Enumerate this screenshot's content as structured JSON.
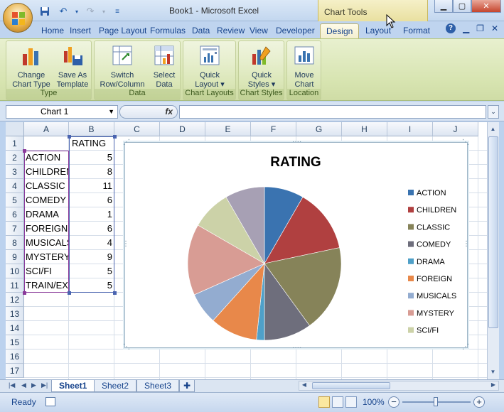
{
  "window": {
    "title": "Book1 - Microsoft Excel",
    "context_tab_group": "Chart Tools"
  },
  "qat": {
    "icons": [
      "save-icon",
      "undo-icon",
      "redo-icon",
      "customize-icon"
    ]
  },
  "ribbon": {
    "tabs": [
      "Home",
      "Insert",
      "Page Layout",
      "Formulas",
      "Data",
      "Review",
      "View",
      "Developer",
      "Design",
      "Layout",
      "Format"
    ],
    "active_tab": "Design",
    "groups": [
      {
        "label": "Type",
        "buttons": [
          {
            "label1": "Change",
            "label2": "Chart Type"
          },
          {
            "label1": "Save As",
            "label2": "Template"
          }
        ]
      },
      {
        "label": "Data",
        "buttons": [
          {
            "label1": "Switch",
            "label2": "Row/Column"
          },
          {
            "label1": "Select",
            "label2": "Data"
          }
        ]
      },
      {
        "label": "Chart Layouts",
        "buttons": [
          {
            "label1": "Quick",
            "label2": "Layout ▾"
          }
        ]
      },
      {
        "label": "Chart Styles",
        "buttons": [
          {
            "label1": "Quick",
            "label2": "Styles ▾"
          }
        ]
      },
      {
        "label": "Location",
        "buttons": [
          {
            "label1": "Move",
            "label2": "Chart"
          }
        ]
      }
    ]
  },
  "formula_bar": {
    "name_box": "Chart 1",
    "fx": "fx",
    "formula": ""
  },
  "sheet": {
    "columns": [
      "A",
      "B",
      "C",
      "D",
      "E",
      "F",
      "G",
      "H",
      "I",
      "J"
    ],
    "rows": [
      "1",
      "2",
      "3",
      "4",
      "5",
      "6",
      "7",
      "8",
      "9",
      "10",
      "11",
      "12",
      "13",
      "14",
      "15",
      "16",
      "17"
    ],
    "header_b1": "RATING",
    "cells": [
      {
        "label": "ACTION",
        "value": "5"
      },
      {
        "label": "CHILDREN",
        "value": "8"
      },
      {
        "label": "CLASSIC",
        "value": "11"
      },
      {
        "label": "COMEDY",
        "value": "6"
      },
      {
        "label": "DRAMA",
        "value": "1"
      },
      {
        "label": "FOREIGN",
        "value": "6"
      },
      {
        "label": "MUSICALS",
        "value": "4"
      },
      {
        "label": "MYSTERY",
        "value": "9"
      },
      {
        "label": "SCI/FI",
        "value": "5"
      },
      {
        "label": "TRAIN/EX",
        "value": "5"
      }
    ]
  },
  "chart_data": {
    "type": "pie",
    "title": "RATING",
    "categories": [
      "ACTION",
      "CHILDREN",
      "CLASSIC",
      "COMEDY",
      "DRAMA",
      "FOREIGN",
      "MUSICALS",
      "MYSTERY",
      "SCI/FI",
      "TRAIN/EX"
    ],
    "values": [
      5,
      8,
      11,
      6,
      1,
      6,
      4,
      9,
      5,
      5
    ],
    "colors": [
      "#3a73b0",
      "#b04040",
      "#868359",
      "#6e6e7c",
      "#4fa0c8",
      "#e8884a",
      "#93acd0",
      "#d89c94",
      "#ccd2a8",
      "#a7a0b4"
    ],
    "legend_entries": [
      "ACTION",
      "CHILDREN",
      "CLASSIC",
      "COMEDY",
      "DRAMA",
      "FOREIGN",
      "MUSICALS",
      "MYSTERY",
      "SCI/FI"
    ],
    "legend_position": "right"
  },
  "sheet_tabs": [
    "Sheet1",
    "Sheet2",
    "Sheet3"
  ],
  "active_sheet": "Sheet1",
  "status": {
    "mode": "Ready",
    "zoom": "100%"
  }
}
